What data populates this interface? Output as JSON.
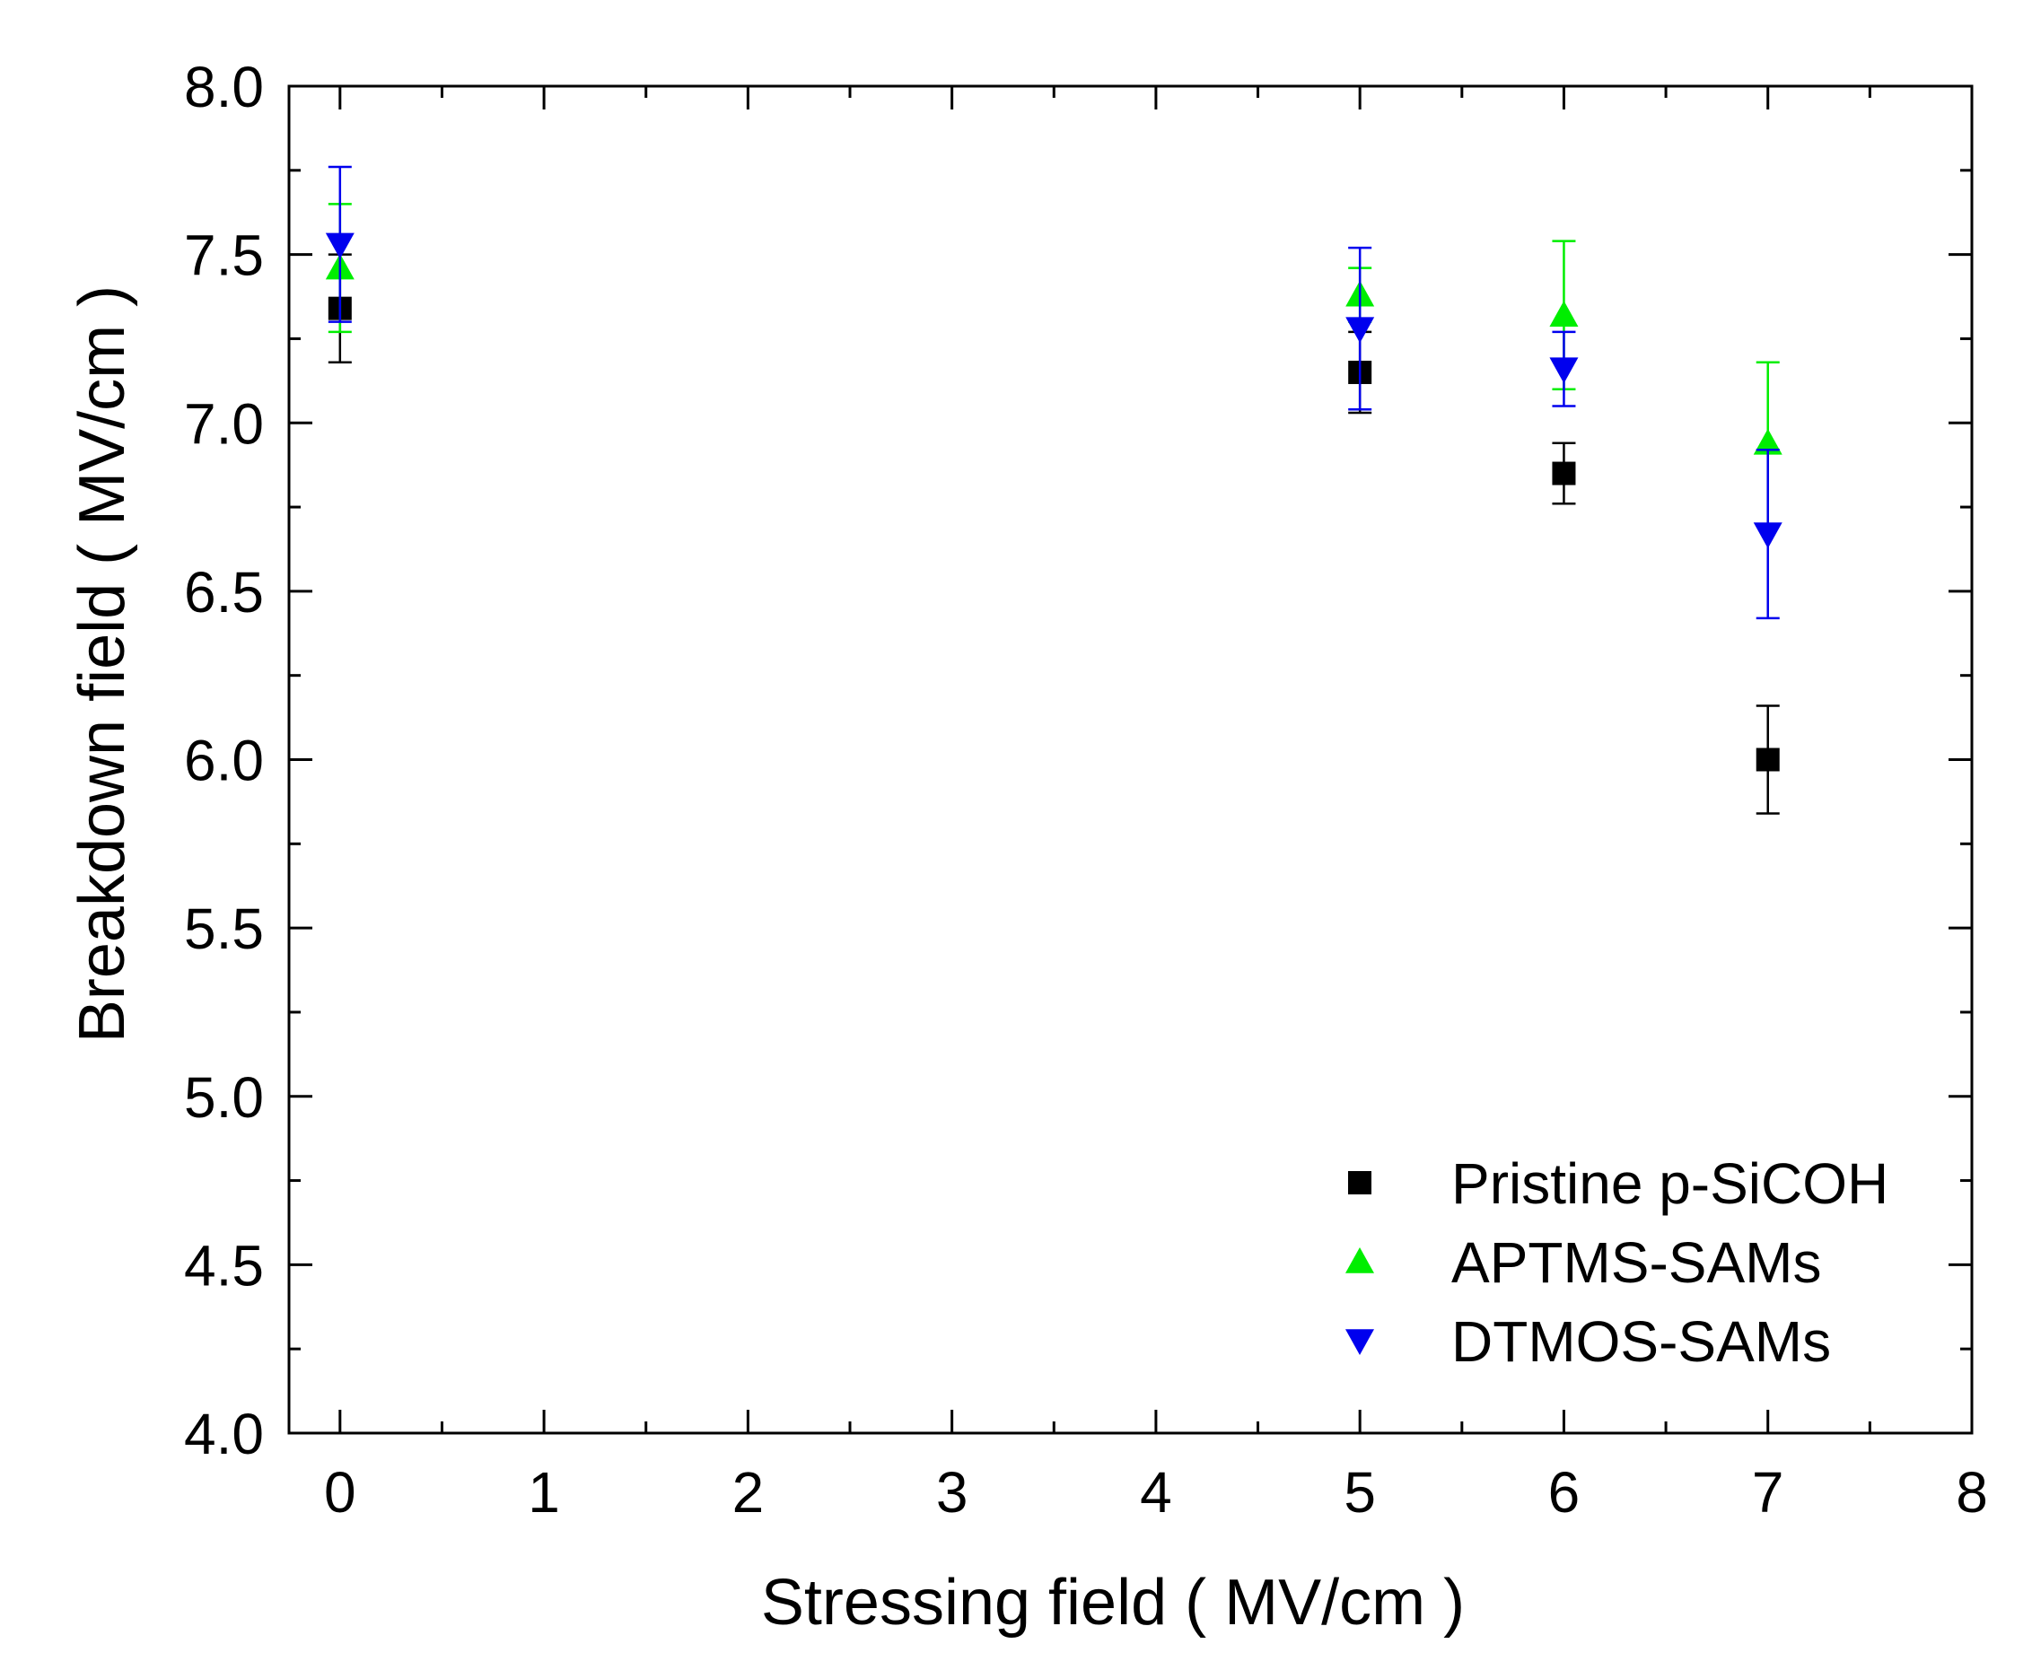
{
  "chart_data": {
    "type": "scatter",
    "title": "",
    "xlabel": "Stressing field ( MV/cm )",
    "ylabel": "Breakdown field ( MV/cm )",
    "xlim": [
      -0.25,
      8
    ],
    "ylim": [
      4.0,
      8.0
    ],
    "x_ticks": [
      "0",
      "1",
      "2",
      "3",
      "4",
      "5",
      "6",
      "7",
      "8"
    ],
    "y_ticks": [
      "4.0",
      "4.5",
      "5.0",
      "5.5",
      "6.0",
      "6.5",
      "7.0",
      "7.5",
      "8.0"
    ],
    "grid": false,
    "legend_position": "bottom-right",
    "series": [
      {
        "name": "Pristine p-SiCOH",
        "marker": "square",
        "color": "#000000",
        "points": [
          {
            "x": 0,
            "y": 7.34,
            "err": 0.16
          },
          {
            "x": 5,
            "y": 7.15,
            "err": 0.12
          },
          {
            "x": 6,
            "y": 6.85,
            "err": 0.09
          },
          {
            "x": 7,
            "y": 6.0,
            "err": 0.16
          }
        ]
      },
      {
        "name": "APTMS-SAMs",
        "marker": "triangle-up",
        "color": "#00ee00",
        "points": [
          {
            "x": 0,
            "y": 7.46,
            "err": 0.19
          },
          {
            "x": 5,
            "y": 7.38,
            "err": 0.08
          },
          {
            "x": 6,
            "y": 7.32,
            "err": 0.22
          },
          {
            "x": 7,
            "y": 6.94,
            "err": 0.24
          }
        ]
      },
      {
        "name": "DTMOS-SAMs",
        "marker": "triangle-down",
        "color": "#0000ee",
        "points": [
          {
            "x": 0,
            "y": 7.53,
            "err": 0.23
          },
          {
            "x": 5,
            "y": 7.28,
            "err": 0.24
          },
          {
            "x": 6,
            "y": 7.16,
            "err": 0.11
          },
          {
            "x": 7,
            "y": 6.67,
            "err": 0.25
          }
        ]
      }
    ]
  }
}
